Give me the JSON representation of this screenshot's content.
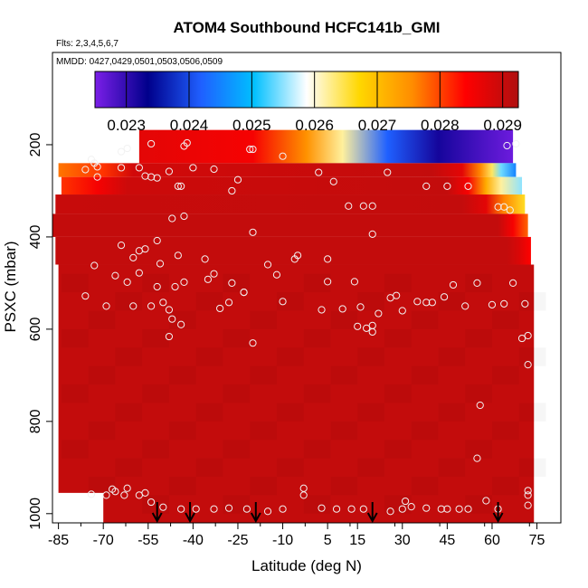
{
  "chart_data": {
    "type": "heatmap",
    "title": "ATOM4 Southbound HCFC141b_GMI",
    "flights_label": "Flts: 2,3,4,5,6,7",
    "dates_label": "MMDD: 0427,0429,0501,0503,0506,0509",
    "xlabel": "Latitude (deg N)",
    "ylabel": "PSXC (mbar)",
    "xlim": [
      -87,
      83
    ],
    "ylim": [
      1020,
      0
    ],
    "xticks": [
      -85,
      -70,
      -55,
      -40,
      -25,
      -10,
      5,
      15,
      30,
      45,
      60,
      75
    ],
    "yticks": [
      200,
      400,
      600,
      800,
      1000
    ],
    "colorbar": {
      "min": 0.0225,
      "max": 0.02925,
      "ticks": [
        0.023,
        0.024,
        0.025,
        0.026,
        0.027,
        0.028,
        0.029
      ],
      "tick_labels": [
        "0.023",
        "0.024",
        "0.025",
        "0.026",
        "0.027",
        "0.028",
        "0.029"
      ],
      "colors": [
        "#7b1fe8",
        "#00008b",
        "#1f5fff",
        "#00bfff",
        "#ffffff",
        "#ffd700",
        "#ff8c00",
        "#ff0000",
        "#b01010"
      ]
    },
    "background_value": 0.02905,
    "field_rows": [
      {
        "p_top": 168,
        "p_bot": 240,
        "lat_start": -58,
        "lat_end": 67,
        "stops": [
          [
            -58,
            0.0287
          ],
          [
            -20,
            0.0285
          ],
          [
            -2,
            0.0275
          ],
          [
            10,
            0.0262
          ],
          [
            25,
            0.0242
          ],
          [
            42,
            0.0232
          ],
          [
            58,
            0.0228
          ],
          [
            67,
            0.0226
          ]
        ]
      },
      {
        "p_top": 240,
        "p_bot": 270,
        "lat_start": -85,
        "lat_end": 68,
        "stops": [
          [
            -85,
            0.0277
          ],
          [
            -70,
            0.0281
          ],
          [
            -60,
            0.0289
          ],
          [
            40,
            0.02905
          ],
          [
            50,
            0.0287
          ],
          [
            56,
            0.0276
          ],
          [
            60,
            0.0264
          ],
          [
            63,
            0.0254
          ],
          [
            68,
            0.0245
          ]
        ]
      },
      {
        "p_top": 270,
        "p_bot": 308,
        "lat_start": -84,
        "lat_end": 70,
        "stops": [
          [
            -84,
            0.0281
          ],
          [
            -72,
            0.0285
          ],
          [
            -62,
            0.02895
          ],
          [
            45,
            0.02905
          ],
          [
            52,
            0.0285
          ],
          [
            58,
            0.0272
          ],
          [
            63,
            0.0262
          ],
          [
            70,
            0.0255
          ]
        ]
      },
      {
        "p_top": 308,
        "p_bot": 350,
        "lat_start": -86,
        "lat_end": 71,
        "stops": [
          [
            -86,
            0.029
          ],
          [
            50,
            0.02905
          ],
          [
            58,
            0.0287
          ],
          [
            64,
            0.0276
          ],
          [
            71,
            0.0266
          ]
        ]
      },
      {
        "p_top": 350,
        "p_bot": 400,
        "lat_start": -87,
        "lat_end": 72,
        "stops": [
          [
            -87,
            0.02905
          ],
          [
            62,
            0.02905
          ],
          [
            67,
            0.0285
          ],
          [
            72,
            0.0278
          ]
        ]
      },
      {
        "p_top": 400,
        "p_bot": 460,
        "lat_start": -86,
        "lat_end": 73,
        "stops": [
          [
            -86,
            0.02905
          ],
          [
            65,
            0.02905
          ],
          [
            69,
            0.0288
          ],
          [
            73,
            0.0284
          ]
        ]
      },
      {
        "p_top": 460,
        "p_bot": 1020,
        "lat_start": -85,
        "lat_end": 74,
        "stops": [
          [
            -85,
            0.02905
          ],
          [
            74,
            0.02905
          ]
        ]
      }
    ],
    "blank_corner": {
      "lat_start": -87,
      "lat_end": -70,
      "p_top": 955,
      "p_bot": 1020
    },
    "observations": [
      [
        -64,
        215
      ],
      [
        -62,
        208
      ],
      [
        -54,
        198
      ],
      [
        -42,
        196
      ],
      [
        -43,
        203
      ],
      [
        -21,
        210
      ],
      [
        -20,
        210
      ],
      [
        -10,
        225
      ],
      [
        68,
        198
      ],
      [
        65,
        202
      ],
      [
        -74,
        232
      ],
      [
        -73,
        240
      ],
      [
        -72,
        248
      ],
      [
        -76,
        254
      ],
      [
        -64,
        250
      ],
      [
        -58,
        250
      ],
      [
        -48,
        258
      ],
      [
        -40,
        250
      ],
      [
        -33,
        253
      ],
      [
        -72,
        270
      ],
      [
        -56,
        268
      ],
      [
        -54,
        270
      ],
      [
        -52,
        272
      ],
      [
        -45,
        290
      ],
      [
        -44,
        290
      ],
      [
        -25,
        276
      ],
      [
        -27,
        300
      ],
      [
        2,
        260
      ],
      [
        7,
        280
      ],
      [
        25,
        260
      ],
      [
        38,
        290
      ],
      [
        45,
        290
      ],
      [
        52,
        290
      ],
      [
        62,
        335
      ],
      [
        64,
        335
      ],
      [
        66,
        342
      ],
      [
        12,
        333
      ],
      [
        17,
        333
      ],
      [
        20,
        333
      ],
      [
        -47,
        360
      ],
      [
        -43,
        355
      ],
      [
        -20,
        390
      ],
      [
        20,
        394
      ],
      [
        -64,
        418
      ],
      [
        -58,
        430
      ],
      [
        -56,
        426
      ],
      [
        -52,
        408
      ],
      [
        -45,
        440
      ],
      [
        -36,
        448
      ],
      [
        -33,
        480
      ],
      [
        -60,
        445
      ],
      [
        -51,
        458
      ],
      [
        -73,
        462
      ],
      [
        -66,
        484
      ],
      [
        -62,
        498
      ],
      [
        -58,
        478
      ],
      [
        -52,
        508
      ],
      [
        -46,
        508
      ],
      [
        -43,
        498
      ],
      [
        -35,
        492
      ],
      [
        -27,
        500
      ],
      [
        -23,
        520
      ],
      [
        -15,
        460
      ],
      [
        -12,
        482
      ],
      [
        -6,
        448
      ],
      [
        5,
        448
      ],
      [
        -54,
        550
      ],
      [
        -50,
        542
      ],
      [
        -60,
        550
      ],
      [
        -76,
        528
      ],
      [
        -69,
        550
      ],
      [
        -48,
        558
      ],
      [
        -47,
        578
      ],
      [
        -44,
        590
      ],
      [
        -31,
        555
      ],
      [
        -28,
        542
      ],
      [
        -23,
        520
      ],
      [
        -20,
        630
      ],
      [
        -10,
        540
      ],
      [
        -5,
        440
      ],
      [
        3,
        558
      ],
      [
        5,
        497
      ],
      [
        10,
        556
      ],
      [
        14,
        497
      ],
      [
        16,
        552
      ],
      [
        15,
        594
      ],
      [
        18,
        598
      ],
      [
        20,
        592
      ],
      [
        22,
        566
      ],
      [
        26,
        532
      ],
      [
        28,
        527
      ],
      [
        30,
        560
      ],
      [
        35,
        540
      ],
      [
        38,
        542
      ],
      [
        40,
        542
      ],
      [
        44,
        530
      ],
      [
        47,
        504
      ],
      [
        51,
        550
      ],
      [
        55,
        500
      ],
      [
        60,
        547
      ],
      [
        64,
        545
      ],
      [
        -48,
        616
      ],
      [
        20,
        606
      ],
      [
        67,
        500
      ],
      [
        71,
        545
      ],
      [
        72,
        614
      ],
      [
        72,
        677
      ],
      [
        70,
        620
      ],
      [
        56,
        765
      ],
      [
        55,
        880
      ],
      [
        72,
        950
      ],
      [
        72,
        960
      ],
      [
        58,
        972
      ],
      [
        45,
        990
      ],
      [
        33,
        985
      ],
      [
        31,
        973
      ],
      [
        -74,
        958
      ],
      [
        -69,
        960
      ],
      [
        -63,
        960
      ],
      [
        -62,
        945
      ],
      [
        -67,
        947
      ],
      [
        -66,
        952
      ],
      [
        -58,
        960
      ],
      [
        -56,
        955
      ],
      [
        -54,
        975
      ],
      [
        -50,
        986
      ],
      [
        -44,
        990
      ],
      [
        -39,
        990
      ],
      [
        -33,
        990
      ],
      [
        -28,
        988
      ],
      [
        -22,
        990
      ],
      [
        -15,
        995
      ],
      [
        -10,
        990
      ],
      [
        -3,
        960
      ],
      [
        -3,
        945
      ],
      [
        3,
        988
      ],
      [
        8,
        990
      ],
      [
        13,
        990
      ],
      [
        17,
        990
      ],
      [
        26,
        995
      ],
      [
        30,
        990
      ],
      [
        38,
        988
      ],
      [
        43,
        990
      ],
      [
        49,
        990
      ],
      [
        52,
        990
      ],
      [
        62,
        990
      ],
      [
        72,
        982
      ]
    ],
    "flight_markers": [
      -52,
      -41,
      -19,
      20,
      62
    ]
  }
}
